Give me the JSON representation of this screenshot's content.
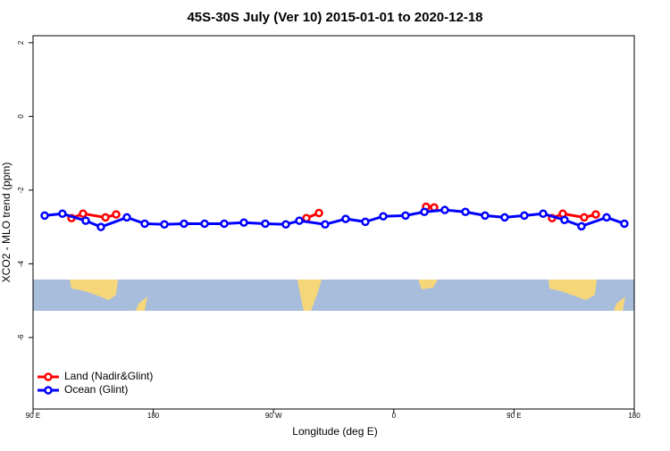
{
  "chart_data": {
    "type": "line",
    "title": "45S-30S July (Ver 10)   2015-01-01 to 2020-12-18",
    "x_label": "Longitude (deg E)",
    "y_label": "XCO2 - MLO trend (ppm)",
    "xlim": [
      90,
      540
    ],
    "xticks": [
      {
        "value": 90,
        "label": "90 E"
      },
      {
        "value": 180,
        "label": "180"
      },
      {
        "value": 270,
        "label": "90 W"
      },
      {
        "value": 360,
        "label": "0"
      },
      {
        "value": 450,
        "label": "90 E"
      },
      {
        "value": 540,
        "label": "180"
      }
    ],
    "ylim": [
      -7.94,
      2.19
    ],
    "yticks": [
      2,
      0,
      -2,
      -4,
      -6
    ],
    "legend": "bottom-left",
    "series": [
      {
        "name": "Land (Nadir&Glint)",
        "color": "#ff0000",
        "x": [
          118.8,
          127.4,
          144.2,
          152.2,
          null,
          294.6,
          304,
          null,
          384.2,
          390.2,
          null,
          478.5,
          486.5,
          502.5,
          511.2
        ],
        "values": [
          -2.76,
          -2.64,
          -2.74,
          -2.66,
          null,
          -2.76,
          -2.62,
          null,
          -2.45,
          -2.47,
          null,
          -2.76,
          -2.64,
          -2.74,
          -2.66
        ]
      },
      {
        "name": "Ocean (Glint)",
        "color": "#0000ff",
        "x": [
          98.7,
          112,
          129.4,
          140.8,
          160.2,
          173.6,
          188.3,
          203,
          218.4,
          233.1,
          247.8,
          263.8,
          279.2,
          289.3,
          308.6,
          324,
          338.7,
          352.1,
          368.8,
          382.9,
          398.2,
          413.6,
          428.3,
          443,
          457.7,
          471.8,
          487.8,
          500.5,
          519.3,
          532.6
        ],
        "values": [
          -2.69,
          -2.64,
          -2.83,
          -3.0,
          -2.74,
          -2.91,
          -2.93,
          -2.91,
          -2.91,
          -2.91,
          -2.88,
          -2.91,
          -2.93,
          -2.83,
          -2.93,
          -2.78,
          -2.86,
          -2.71,
          -2.69,
          -2.59,
          -2.54,
          -2.59,
          -2.69,
          -2.74,
          -2.69,
          -2.64,
          -2.81,
          -2.98,
          -2.74,
          -2.91
        ]
      }
    ]
  }
}
